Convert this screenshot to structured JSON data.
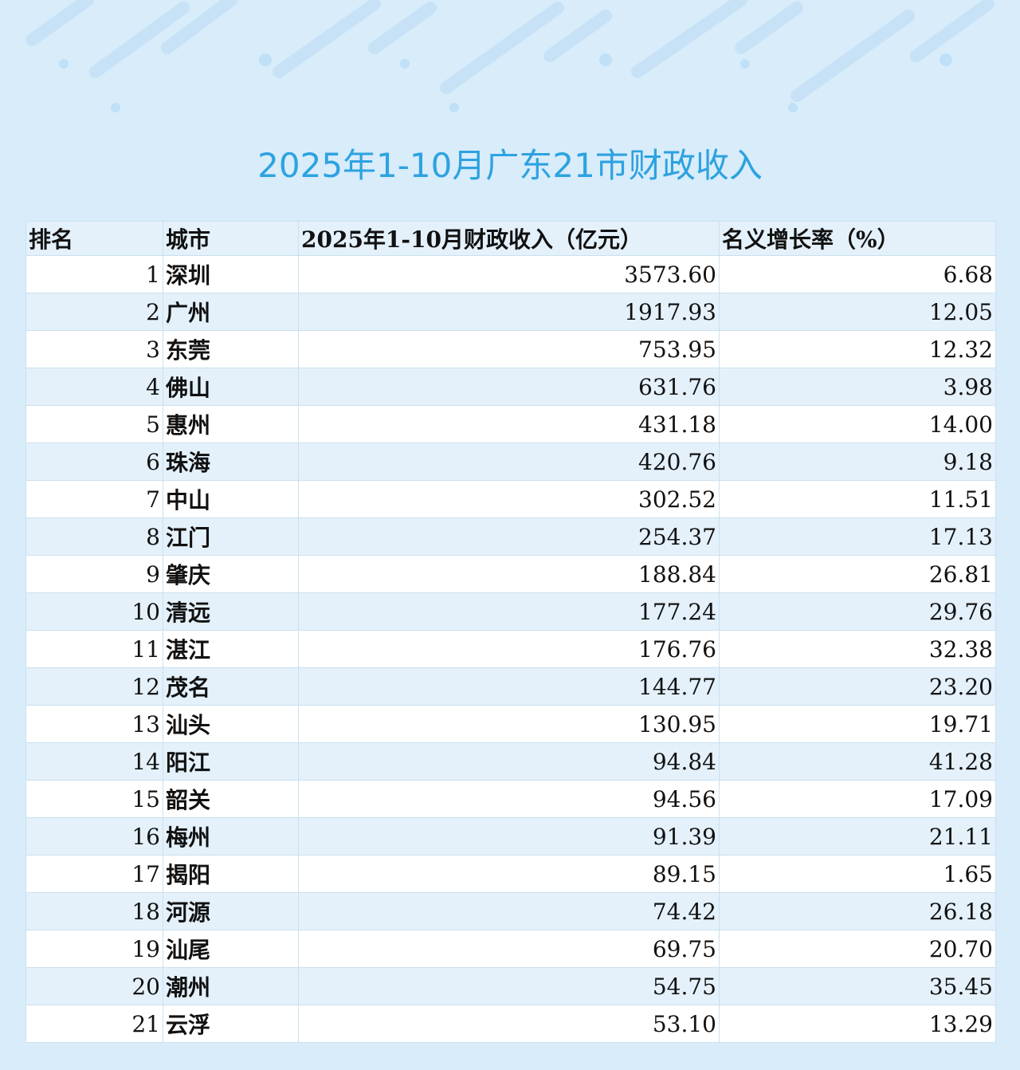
{
  "title": "2025年1-10月广东21市财政收入",
  "headers": {
    "rank": "排名",
    "city": "城市",
    "revenue": "2025年1-10月财政收入（亿元）",
    "growth": "名义增长率（%）"
  },
  "rows": [
    {
      "rank": "1",
      "city": "深圳",
      "revenue": "3573.60",
      "growth": "6.68"
    },
    {
      "rank": "2",
      "city": "广州",
      "revenue": "1917.93",
      "growth": "12.05"
    },
    {
      "rank": "3",
      "city": "东莞",
      "revenue": "753.95",
      "growth": "12.32"
    },
    {
      "rank": "4",
      "city": "佛山",
      "revenue": "631.76",
      "growth": "3.98"
    },
    {
      "rank": "5",
      "city": "惠州",
      "revenue": "431.18",
      "growth": "14.00"
    },
    {
      "rank": "6",
      "city": "珠海",
      "revenue": "420.76",
      "growth": "9.18"
    },
    {
      "rank": "7",
      "city": "中山",
      "revenue": "302.52",
      "growth": "11.51"
    },
    {
      "rank": "8",
      "city": "江门",
      "revenue": "254.37",
      "growth": "17.13"
    },
    {
      "rank": "9",
      "city": "肇庆",
      "revenue": "188.84",
      "growth": "26.81"
    },
    {
      "rank": "10",
      "city": "清远",
      "revenue": "177.24",
      "growth": "29.76"
    },
    {
      "rank": "11",
      "city": "湛江",
      "revenue": "176.76",
      "growth": "32.38"
    },
    {
      "rank": "12",
      "city": "茂名",
      "revenue": "144.77",
      "growth": "23.20"
    },
    {
      "rank": "13",
      "city": "汕头",
      "revenue": "130.95",
      "growth": "19.71"
    },
    {
      "rank": "14",
      "city": "阳江",
      "revenue": "94.84",
      "growth": "41.28"
    },
    {
      "rank": "15",
      "city": "韶关",
      "revenue": "94.56",
      "growth": "17.09"
    },
    {
      "rank": "16",
      "city": "梅州",
      "revenue": "91.39",
      "growth": "21.11"
    },
    {
      "rank": "17",
      "city": "揭阳",
      "revenue": "89.15",
      "growth": "1.65"
    },
    {
      "rank": "18",
      "city": "河源",
      "revenue": "74.42",
      "growth": "26.18"
    },
    {
      "rank": "19",
      "city": "汕尾",
      "revenue": "69.75",
      "growth": "20.70"
    },
    {
      "rank": "20",
      "city": "潮州",
      "revenue": "54.75",
      "growth": "35.45"
    },
    {
      "rank": "21",
      "city": "云浮",
      "revenue": "53.10",
      "growth": "13.29"
    }
  ]
}
